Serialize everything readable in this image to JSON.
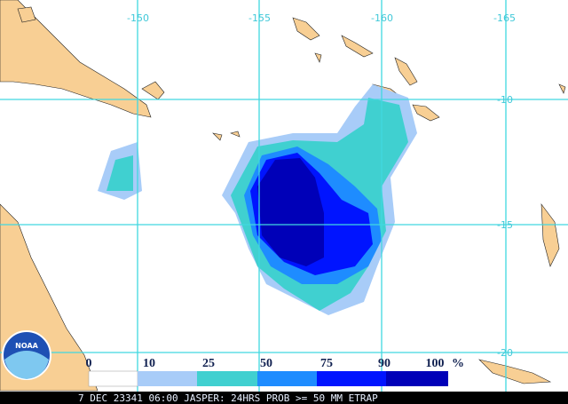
{
  "map": {
    "lon_labels": [
      "-150",
      "-155",
      "-160",
      "-165"
    ],
    "lat_labels": [
      "-10",
      "-15",
      "-20"
    ],
    "legend": {
      "labels": [
        "0",
        "10",
        "25",
        "50",
        "75",
        "90",
        "100"
      ],
      "unit": "%"
    },
    "logo": "NOAA",
    "caption": "7 DEC 23341 06:00 JASPER: 24HRS PROB >= 50 MM ETRAP"
  }
}
